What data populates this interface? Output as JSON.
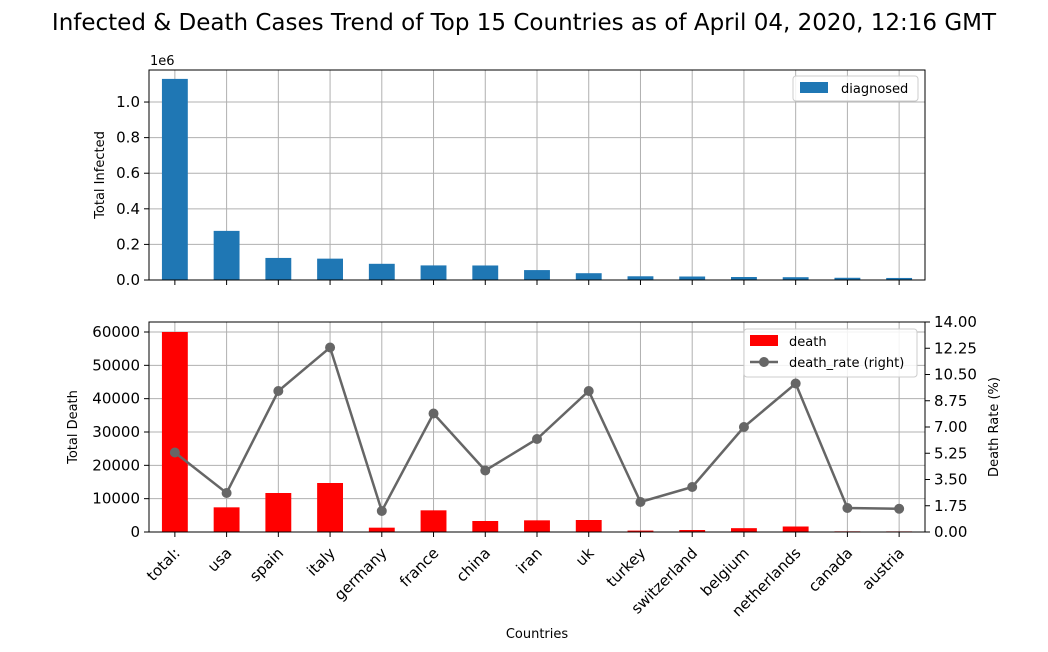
{
  "title": "Infected & Death Cases Trend of Top 15 Countries as of April 04, 2020, 12:16 GMT",
  "chart_data": [
    {
      "type": "bar",
      "categories": [
        "total:",
        "usa",
        "spain",
        "italy",
        "germany",
        "france",
        "china",
        "iran",
        "uk",
        "turkey",
        "switzerland",
        "belgium",
        "netherlands",
        "canada",
        "austria"
      ],
      "series": [
        {
          "name": "diagnosed",
          "values": [
            1130000,
            276000,
            124000,
            120000,
            91000,
            82000,
            81600,
            55700,
            38200,
            20900,
            19600,
            16800,
            15700,
            12500,
            11500
          ],
          "color": "#1f77b4"
        }
      ],
      "ylabel": "Total Infected",
      "ylim": [
        0,
        1180000
      ],
      "yticks": [
        "0.0",
        "0.2",
        "0.4",
        "0.6",
        "0.8",
        "1.0"
      ],
      "ytick_values": [
        0,
        200000,
        400000,
        600000,
        800000,
        1000000
      ],
      "offset_label": "1e6",
      "grid": true,
      "legend": "top-right"
    },
    {
      "type": "bar",
      "categories": [
        "total:",
        "usa",
        "spain",
        "italy",
        "germany",
        "france",
        "china",
        "iran",
        "uk",
        "turkey",
        "switzerland",
        "belgium",
        "netherlands",
        "canada",
        "austria"
      ],
      "series": [
        {
          "name": "death",
          "values": [
            60000,
            7400,
            11700,
            14700,
            1300,
            6500,
            3300,
            3500,
            3600,
            425,
            600,
            1150,
            1650,
            200,
            185
          ],
          "color": "#ff0000"
        },
        {
          "name": "death_rate (right)",
          "type": "line",
          "axis": "right",
          "values": [
            5.3,
            2.6,
            9.4,
            12.3,
            1.4,
            7.9,
            4.1,
            6.2,
            9.4,
            2.0,
            3.0,
            7.0,
            9.9,
            1.6,
            1.55
          ],
          "color": "#666666"
        }
      ],
      "xlabel": "Countries",
      "ylabel": "Total Death",
      "ylim": [
        0,
        63000
      ],
      "yticks": [
        "0",
        "10000",
        "20000",
        "30000",
        "40000",
        "50000",
        "60000"
      ],
      "ytick_values": [
        0,
        10000,
        20000,
        30000,
        40000,
        50000,
        60000
      ],
      "y2label": "Death Rate (%)",
      "y2lim": [
        0,
        14
      ],
      "y2ticks": [
        "0.00",
        "1.75",
        "3.50",
        "5.25",
        "7.00",
        "8.75",
        "10.50",
        "12.25",
        "14.00"
      ],
      "y2tick_values": [
        0,
        1.75,
        3.5,
        5.25,
        7,
        8.75,
        10.5,
        12.25,
        14
      ],
      "grid": true,
      "legend": "top-right"
    }
  ]
}
